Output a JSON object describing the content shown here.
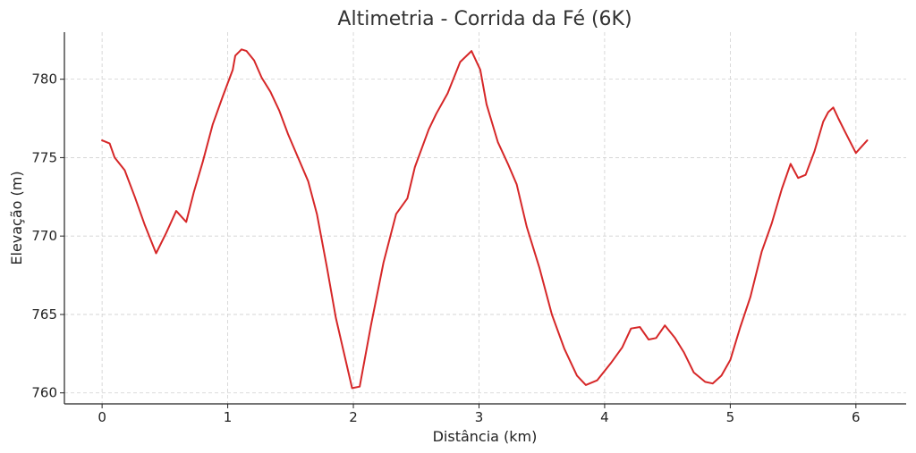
{
  "chart_data": {
    "type": "line",
    "title": "Altimetria - Corrida da Fé (6K)",
    "xlabel": "Distância (km)",
    "ylabel": "Elevação (m)",
    "xlim": [
      -0.3,
      6.4
    ],
    "ylim": [
      759.3,
      783.0
    ],
    "xticks": [
      0,
      1,
      2,
      3,
      4,
      5,
      6
    ],
    "yticks": [
      760,
      765,
      770,
      775,
      780
    ],
    "grid": true,
    "line_color": "#d62728",
    "series": [
      {
        "x": [
          0.0,
          0.06,
          0.1,
          0.18,
          0.26,
          0.34,
          0.43,
          0.51,
          0.59,
          0.67,
          0.73,
          0.8,
          0.88,
          0.96,
          1.04,
          1.06,
          1.11,
          1.15,
          1.21,
          1.27,
          1.34,
          1.41,
          1.48,
          1.56,
          1.64,
          1.71,
          1.79,
          1.86,
          1.99,
          2.05,
          2.14,
          2.24,
          2.34,
          2.43,
          2.49,
          2.6,
          2.66,
          2.75,
          2.85,
          2.94,
          3.01,
          3.06,
          3.15,
          3.23,
          3.3,
          3.38,
          3.48,
          3.58,
          3.68,
          3.78,
          3.85,
          3.94,
          4.05,
          4.14,
          4.21,
          4.28,
          4.35,
          4.41,
          4.48,
          4.56,
          4.63,
          4.71,
          4.8,
          4.86,
          4.93,
          5.0,
          5.08,
          5.16,
          5.25,
          5.33,
          5.41,
          5.48,
          5.54,
          5.6,
          5.67,
          5.74,
          5.78,
          5.82,
          5.86,
          5.91,
          6.0,
          6.09
        ],
        "y": [
          776.1,
          775.9,
          775.0,
          774.2,
          772.5,
          770.7,
          768.9,
          770.2,
          771.6,
          770.9,
          772.8,
          774.7,
          777.1,
          778.9,
          780.6,
          781.5,
          781.9,
          781.8,
          781.2,
          780.1,
          779.2,
          778.0,
          776.5,
          775.0,
          773.5,
          771.4,
          768.0,
          764.8,
          760.3,
          760.4,
          764.3,
          768.3,
          771.4,
          772.4,
          774.4,
          776.8,
          777.8,
          779.1,
          781.1,
          781.8,
          780.6,
          778.4,
          776.0,
          774.6,
          773.3,
          770.6,
          768.0,
          765.0,
          762.8,
          761.1,
          760.5,
          760.8,
          761.9,
          762.9,
          764.1,
          764.2,
          763.4,
          763.5,
          764.3,
          763.5,
          762.6,
          761.3,
          760.7,
          760.6,
          761.1,
          762.1,
          764.2,
          766.1,
          769.0,
          770.8,
          773.0,
          774.6,
          773.7,
          773.9,
          775.4,
          777.3,
          777.9,
          778.2,
          777.5,
          776.7,
          775.3,
          776.1
        ]
      }
    ]
  }
}
